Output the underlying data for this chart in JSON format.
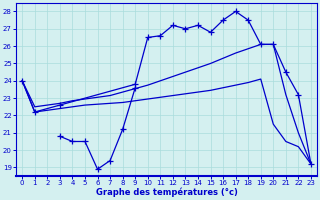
{
  "title": "Graphe des températures (°c)",
  "bg_color": "#d4f0f0",
  "grid_color": "#aadddd",
  "line_color": "#0000cc",
  "xlim": [
    -0.5,
    23.5
  ],
  "ylim": [
    18.5,
    28.5
  ],
  "yticks": [
    19,
    20,
    21,
    22,
    23,
    24,
    25,
    26,
    27,
    28
  ],
  "xticks": [
    0,
    1,
    2,
    3,
    4,
    5,
    6,
    7,
    8,
    9,
    10,
    11,
    12,
    13,
    14,
    15,
    16,
    17,
    18,
    19,
    20,
    21,
    22,
    23
  ],
  "upper_zigzag_x": [
    0,
    1,
    3,
    9,
    10,
    11,
    12,
    13,
    14,
    15,
    16,
    17,
    18,
    19,
    20,
    21,
    22,
    23
  ],
  "upper_zigzag_y": [
    24.0,
    22.2,
    22.6,
    23.8,
    26.5,
    26.6,
    27.2,
    27.0,
    27.2,
    26.8,
    27.5,
    28.0,
    27.5,
    26.1,
    26.1,
    24.5,
    23.2,
    19.2
  ],
  "lower_zigzag_x": [
    3,
    4,
    5,
    6,
    7,
    8,
    9
  ],
  "lower_zigzag_y": [
    20.8,
    20.5,
    20.5,
    18.9,
    19.4,
    21.2,
    23.6
  ],
  "smooth_upper_x": [
    0,
    1,
    2,
    3,
    4,
    5,
    6,
    7,
    8,
    9,
    10,
    11,
    12,
    13,
    14,
    15,
    16,
    17,
    18,
    19,
    20,
    21,
    22,
    23
  ],
  "smooth_upper_y": [
    24.0,
    22.5,
    22.6,
    22.7,
    22.85,
    22.95,
    23.05,
    23.15,
    23.35,
    23.55,
    23.75,
    24.0,
    24.25,
    24.5,
    24.75,
    25.0,
    25.3,
    25.6,
    25.85,
    26.1,
    26.1,
    23.2,
    21.0,
    19.2
  ],
  "smooth_lower_x": [
    0,
    1,
    2,
    3,
    4,
    5,
    6,
    7,
    8,
    9,
    10,
    11,
    12,
    13,
    14,
    15,
    16,
    17,
    18,
    19,
    20,
    21,
    22,
    23
  ],
  "smooth_lower_y": [
    24.0,
    22.2,
    22.3,
    22.4,
    22.5,
    22.6,
    22.65,
    22.7,
    22.75,
    22.85,
    22.95,
    23.05,
    23.15,
    23.25,
    23.35,
    23.45,
    23.6,
    23.75,
    23.9,
    24.1,
    21.5,
    20.5,
    20.2,
    19.2
  ]
}
